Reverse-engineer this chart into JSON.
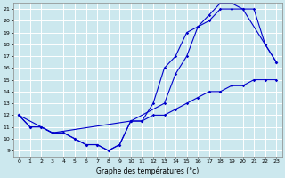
{
  "xlabel": "Graphe des températures (°c)",
  "background_color": "#cce8ee",
  "grid_color": "#ffffff",
  "line_color": "#0000cc",
  "xlim": [
    -0.5,
    23.5
  ],
  "ylim": [
    8.5,
    21.5
  ],
  "yticks": [
    9,
    10,
    11,
    12,
    13,
    14,
    15,
    16,
    17,
    18,
    19,
    20,
    21
  ],
  "xticks": [
    0,
    1,
    2,
    3,
    4,
    5,
    6,
    7,
    8,
    9,
    10,
    11,
    12,
    13,
    14,
    15,
    16,
    17,
    18,
    19,
    20,
    21,
    22,
    23
  ],
  "line1_x": [
    0,
    1,
    2,
    3,
    4,
    5,
    6,
    7,
    8,
    9,
    10,
    11,
    12,
    13,
    14,
    15,
    16,
    17,
    18,
    19,
    20,
    21,
    22,
    23
  ],
  "line1_y": [
    12,
    11,
    11,
    10.5,
    10.5,
    10,
    9.5,
    9.5,
    9,
    9.5,
    11.5,
    11.5,
    12,
    12,
    12.5,
    13,
    13.5,
    14,
    14,
    14.5,
    14.5,
    15,
    15,
    15
  ],
  "line2_x": [
    0,
    1,
    2,
    3,
    4,
    5,
    6,
    7,
    8,
    9,
    10,
    11,
    12,
    13,
    14,
    15,
    16,
    17,
    18,
    19,
    20,
    21,
    22,
    23
  ],
  "line2_y": [
    12,
    11,
    11,
    10.5,
    10.5,
    10,
    9.5,
    9.5,
    9,
    9.5,
    11.5,
    11.5,
    13,
    16,
    17,
    19,
    19.5,
    20,
    21,
    21,
    21,
    21,
    18,
    16.5
  ],
  "line3_x": [
    0,
    3,
    10,
    13,
    14,
    15,
    16,
    17,
    18,
    19,
    20,
    22,
    23
  ],
  "line3_y": [
    12,
    10.5,
    11.5,
    13,
    15.5,
    17,
    19.5,
    20.5,
    21.5,
    21.5,
    21,
    18,
    16.5
  ]
}
